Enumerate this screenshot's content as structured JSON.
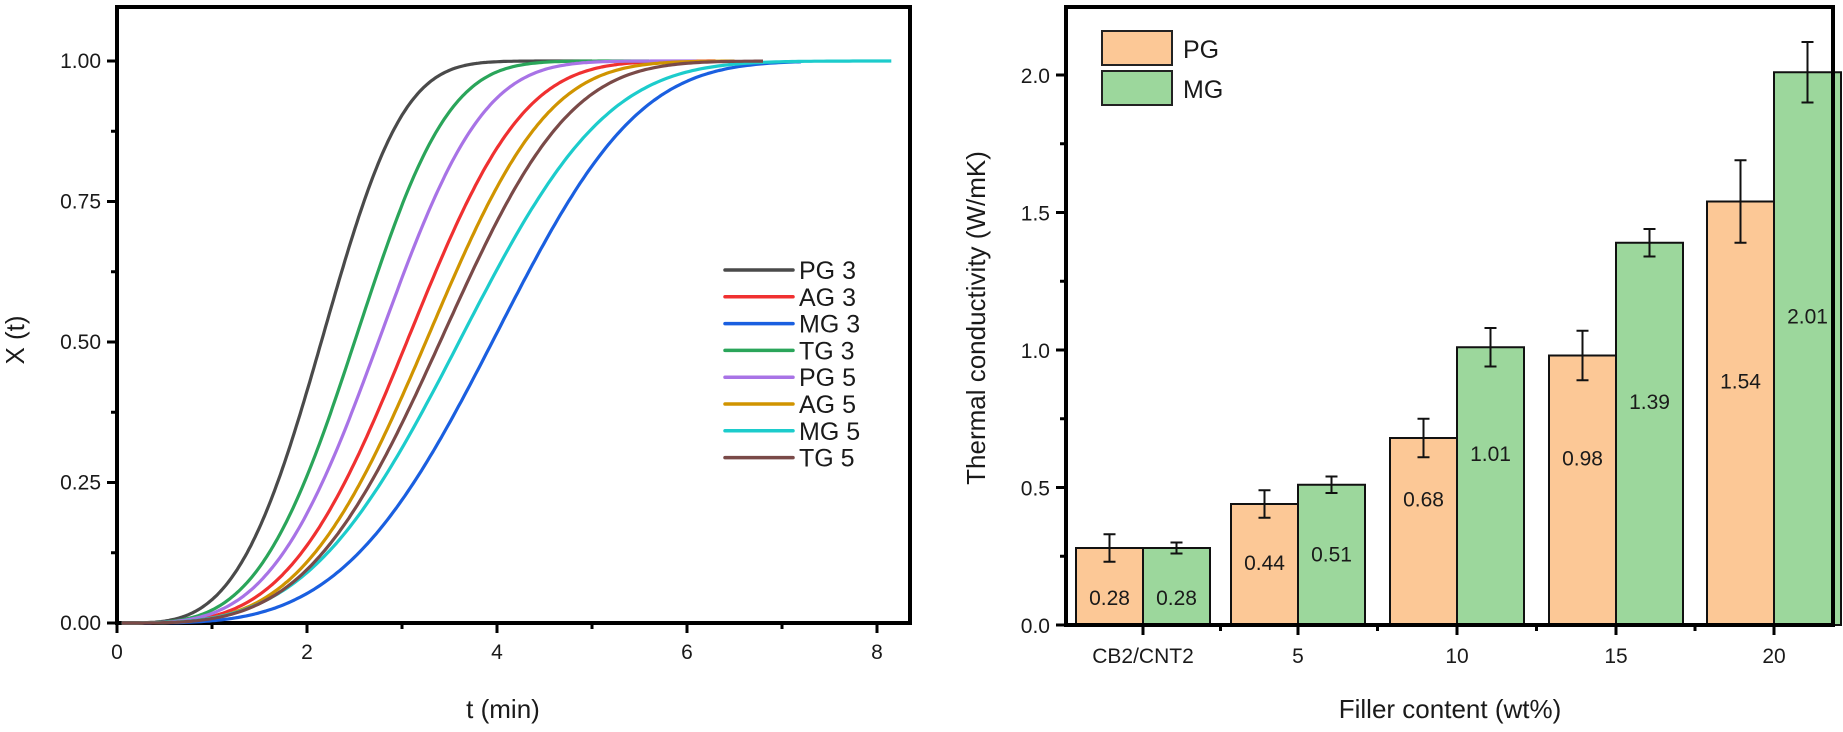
{
  "chart_data": [
    {
      "type": "line",
      "title": "",
      "xlabel": "t (min)",
      "ylabel": "X (t)",
      "xlim": [
        0,
        8.3
      ],
      "ylim": [
        0,
        1.1
      ],
      "x_ticks": [
        0,
        2,
        4,
        6,
        8
      ],
      "x_tick_labels": [
        "0",
        "2",
        "4",
        "6",
        "8"
      ],
      "y_ticks": [
        0,
        0.25,
        0.5,
        0.75,
        1.0
      ],
      "y_tick_labels": [
        "0.00",
        "0.25",
        "0.50",
        "0.75",
        "1.00"
      ],
      "grid": false,
      "legend_position": "center-right",
      "series": [
        {
          "name": "PG 3",
          "color": "#4a4a4a",
          "t_half": 2.15,
          "k": 1.45,
          "t_end": 5.0
        },
        {
          "name": "AG 3",
          "color": "#f03030",
          "t_half": 3.05,
          "k": 1.45,
          "t_end": 6.3
        },
        {
          "name": "MG 3",
          "color": "#1a5fe0",
          "t_half": 3.95,
          "k": 1.55,
          "t_end": 7.2
        },
        {
          "name": "TG 3",
          "color": "#2aa55a",
          "t_half": 2.5,
          "k": 1.5,
          "t_end": 5.6
        },
        {
          "name": "PG 5",
          "color": "#a873e6",
          "t_half": 2.75,
          "k": 1.45,
          "t_end": 6.1
        },
        {
          "name": "AG 5",
          "color": "#d09400",
          "t_half": 3.25,
          "k": 1.5,
          "t_end": 6.5
        },
        {
          "name": "MG 5",
          "color": "#1ccccc",
          "t_half": 3.6,
          "k": 1.2,
          "t_end": 8.15
        },
        {
          "name": "TG 5",
          "color": "#7a4a48",
          "t_half": 3.4,
          "k": 1.45,
          "t_end": 6.8
        }
      ]
    },
    {
      "type": "bar",
      "title": "",
      "xlabel": "Filler content (wt%)",
      "ylabel": "Thermal conductivity (W/mK)",
      "ylim": [
        0,
        2.24
      ],
      "y_ticks": [
        0,
        0.5,
        1.0,
        1.5,
        2.0
      ],
      "y_tick_labels": [
        "0.0",
        "0.5",
        "1.0",
        "1.5",
        "2.0"
      ],
      "categories": [
        "CB2/CNT2",
        "5",
        "10",
        "15",
        "20"
      ],
      "grid": false,
      "legend_position": "top-left",
      "series": [
        {
          "name": "PG",
          "color": "#fcc896",
          "values": [
            0.28,
            0.44,
            0.68,
            0.98,
            1.54
          ],
          "errors": [
            0.05,
            0.05,
            0.07,
            0.09,
            0.15
          ],
          "labels": [
            "0.28",
            "0.44",
            "0.68",
            "0.98",
            "1.54"
          ]
        },
        {
          "name": "MG",
          "color": "#9cd79c",
          "values": [
            0.28,
            0.51,
            1.01,
            1.39,
            2.01
          ],
          "errors": [
            0.02,
            0.03,
            0.07,
            0.05,
            0.11
          ],
          "labels": [
            "0.28",
            "0.51",
            "1.01",
            "1.39",
            "2.01"
          ]
        }
      ]
    }
  ]
}
